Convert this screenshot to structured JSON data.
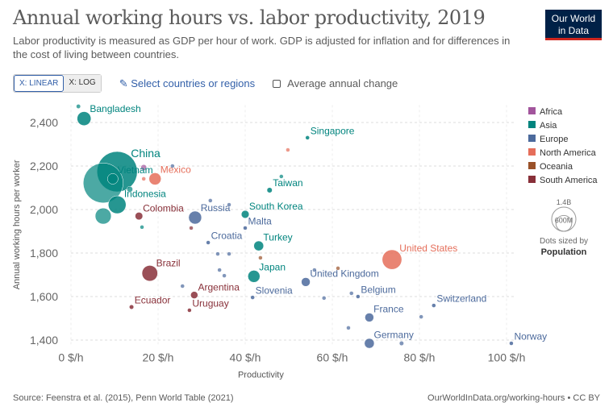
{
  "header": {
    "title": "Annual working hours vs. labor productivity, 2019",
    "subtitle": "Labor productivity is measured as GDP per hour of work. GDP is adjusted for inflation and for differences in the cost of living between countries.",
    "logo": [
      "Our World",
      "in Data"
    ]
  },
  "controls": {
    "linear": "X: LINEAR",
    "log": "X: LOG",
    "select": "Select countries or regions",
    "change": "Average annual change"
  },
  "chart_data": {
    "type": "scatter",
    "x_label": "Productivity",
    "y_label": "Annual working hours per worker",
    "xlim": [
      0,
      102
    ],
    "ylim": [
      1380,
      2480
    ],
    "xticks": [
      {
        "value": 0,
        "label": "0 $/h"
      },
      {
        "value": 20,
        "label": "20 $/h"
      },
      {
        "value": 40,
        "label": "40 $/h"
      },
      {
        "value": 60,
        "label": "60 $/h"
      },
      {
        "value": 80,
        "label": "80 $/h"
      },
      {
        "value": 100,
        "label": "100 $/h"
      }
    ],
    "yticks": [
      {
        "value": 1400,
        "label": "1,400"
      },
      {
        "value": 1600,
        "label": "1,600"
      },
      {
        "value": 1800,
        "label": "1,800"
      },
      {
        "value": 2000,
        "label": "2,000"
      },
      {
        "value": 2200,
        "label": "2,200"
      },
      {
        "value": 2400,
        "label": "2,400"
      }
    ],
    "grid": true,
    "series": [
      {
        "name": "Africa",
        "color": "#a2559c",
        "x": [
          16.7
        ],
        "values": [
          2193
        ],
        "sizes": [
          30000000
        ],
        "labels": [
          null
        ]
      },
      {
        "name": "Asia",
        "color": "#00847e",
        "x": [
          3.0,
          1.7,
          54.3,
          10.6,
          9.6,
          7.4,
          10.6,
          7.4,
          13.5,
          45.6,
          48.3,
          40.0,
          43.1,
          42.0,
          16.3
        ],
        "values": [
          2418,
          2474,
          2330,
          2174,
          2141,
          2122,
          2022,
          1970,
          2093,
          2089,
          2152,
          1978,
          1833,
          1693,
          1919
        ],
        "sizes": [
          165000000,
          16000000,
          6000000,
          1400000000,
          97000000,
          1370000000,
          270000000,
          220000000,
          30000000,
          24000000,
          5000000,
          52000000,
          83000000,
          126000000,
          10000000
        ],
        "labels": [
          "Bangladesh",
          null,
          "Singapore",
          "China",
          "Vietnam",
          null,
          "Indonesia",
          null,
          null,
          "Taiwan",
          null,
          "South Korea",
          "Turkey",
          "Japan",
          null
        ]
      },
      {
        "name": "Europe",
        "color": "#4c6a9c",
        "x": [
          28.5,
          40.0,
          31.5,
          41.7,
          53.9,
          65.9,
          68.5,
          68.5,
          83.3,
          101.1,
          36.3,
          32.0,
          33.7,
          36.3,
          34.1,
          35.2,
          25.6,
          55.9,
          58.1,
          64.4,
          63.7,
          80.4,
          75.9,
          23.3
        ],
        "values": [
          1963,
          1915,
          1848,
          1596,
          1667,
          1600,
          1504,
          1385,
          1559,
          1385,
          2022,
          2041,
          1796,
          1796,
          1722,
          1696,
          1648,
          1722,
          1593,
          1615,
          1456,
          1507,
          1385,
          2200
        ],
        "sizes": [
          145000000,
          500000,
          4000000,
          2000000,
          67000000,
          11000000,
          67000000,
          83000000,
          8600000,
          5400000,
          10000000,
          7000000,
          5000000,
          4000000,
          3000000,
          4000000,
          3000000,
          10000000,
          6000000,
          5000000,
          5000000,
          500000,
          17000000,
          3000000
        ],
        "labels": [
          "Russia",
          "Malta",
          "Croatia",
          "Slovenia",
          "United Kingdom",
          "Belgium",
          "France",
          "Germany",
          "Switzerland",
          "Norway",
          null,
          null,
          null,
          null,
          null,
          null,
          null,
          null,
          null,
          null,
          null,
          null,
          null,
          null
        ]
      },
      {
        "name": "North America",
        "color": "#e56e5a",
        "x": [
          73.7,
          19.3,
          49.8,
          16.7
        ],
        "values": [
          1770,
          2141,
          2274,
          2141
        ],
        "sizes": [
          330000000,
          127000000,
          3000000,
          3000000
        ],
        "labels": [
          "United States",
          "Mexico",
          null,
          null
        ]
      },
      {
        "name": "Oceania",
        "color": "#9a5129",
        "x": [
          61.3,
          43.5
        ],
        "values": [
          1730,
          1778
        ],
        "sizes": [
          5000000,
          3000000
        ],
        "labels": [
          null,
          null
        ]
      },
      {
        "name": "South America",
        "color": "#883039",
        "x": [
          18.1,
          15.6,
          28.3,
          13.9,
          27.2,
          27.6
        ],
        "values": [
          1707,
          1970,
          1607,
          1552,
          1537,
          1915
        ],
        "sizes": [
          211000000,
          50000000,
          45000000,
          17000000,
          3500000,
          3000000
        ],
        "labels": [
          "Brazil",
          "Colombia",
          "Argentina",
          "Ecuador",
          "Uruguay",
          null
        ]
      }
    ],
    "size_legend": {
      "values": [
        {
          "value": 1400000000,
          "label": "1.4B"
        },
        {
          "value": 600000000,
          "label": "600M"
        }
      ],
      "title": "Dots sized by",
      "name": "Population"
    }
  },
  "footer": {
    "source": "Source: Feenstra et al. (2015), Penn World Table (2021)",
    "url": "OurWorldInData.org/working-hours • CC BY"
  }
}
